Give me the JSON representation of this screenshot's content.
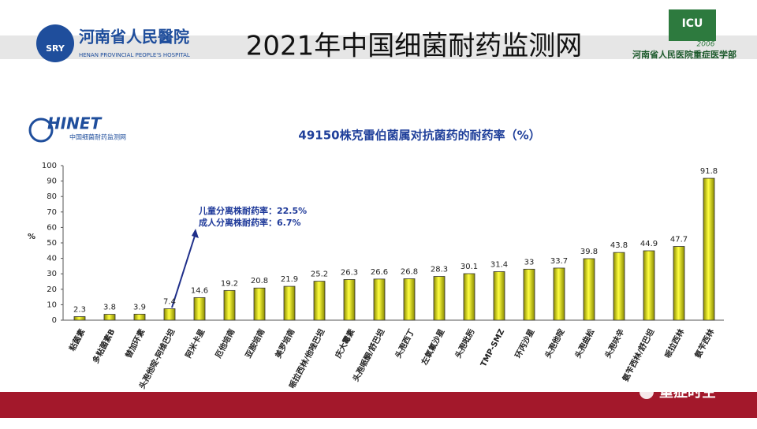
{
  "header": {
    "title": "2021年中国细菌耐药监测网",
    "left_logo": {
      "badge": "SRY",
      "name": "河南省人民醫院",
      "english": "HENAN PROVINCIAL PEOPLE'S HOSPITAL"
    },
    "right_logo": {
      "badge": "ICU",
      "year": "2006",
      "name": "河南省人民医院重症医学部"
    },
    "chart_logo": {
      "name": "HINET",
      "subtitle": "中国细菌耐药监测网"
    },
    "watermark": "重症时空"
  },
  "chart_data": {
    "type": "bar",
    "title": "49150株克雷伯菌属对抗菌药的耐药率（%）",
    "y_label": "%",
    "annotations": [
      "儿童分离株耐药率：22.5%",
      "成人分离株耐药率：6.7%"
    ],
    "categories": [
      "粘菌素",
      "多粘菌素B",
      "替加环素",
      "头孢他啶-阿维巴坦",
      "阿米卡星",
      "厄他培南",
      "亚胺培南",
      "美罗培南",
      "哌拉西林/他唑巴坦",
      "庆大霉素",
      "头孢哌酮/舒巴坦",
      "头孢西丁",
      "左氧氟沙星",
      "头孢吡肟",
      "TMP-SMZ",
      "环丙沙星",
      "头孢他啶",
      "头孢曲松",
      "头孢呋辛",
      "氨苄西林/舒巴坦",
      "哌拉西林",
      "氨苄西林"
    ],
    "values": [
      2.3,
      3.8,
      3.9,
      7.4,
      14.6,
      19.2,
      20.8,
      21.9,
      25.2,
      26.3,
      26.6,
      26.8,
      28.3,
      30.1,
      31.4,
      33,
      33.7,
      39.8,
      43.8,
      44.9,
      47.7,
      91.8
    ],
    "color": "#e6e600",
    "ylim": [
      0,
      100
    ],
    "yticks": [
      0,
      10,
      20,
      30,
      40,
      50,
      60,
      70,
      80,
      90,
      100
    ]
  }
}
